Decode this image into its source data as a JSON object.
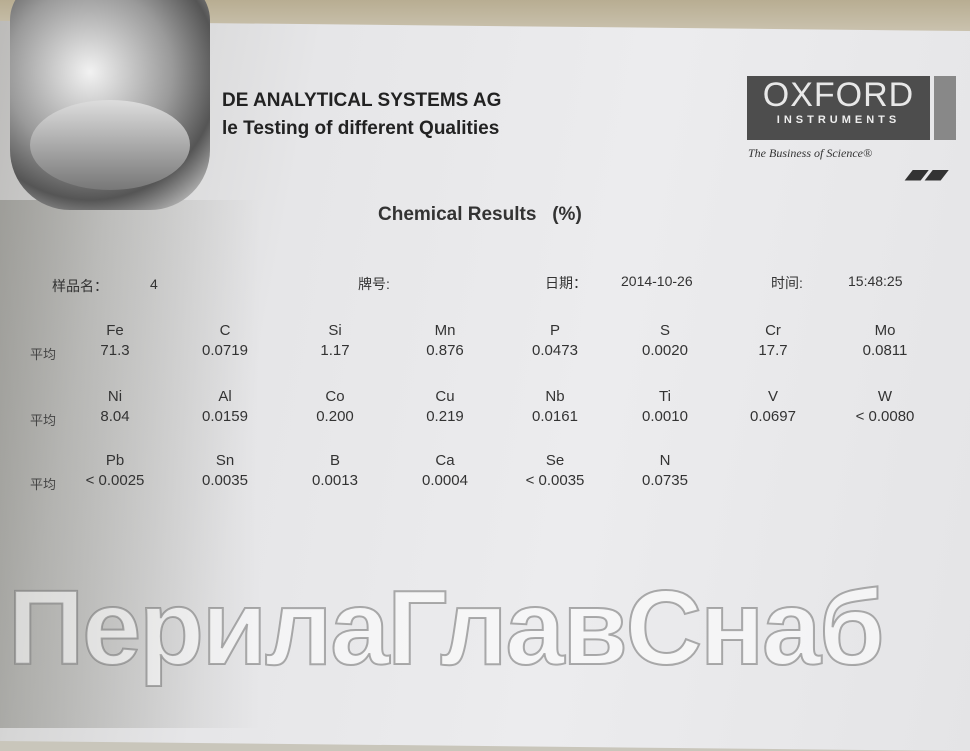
{
  "header": {
    "company": "DE ANALYTICAL SYSTEMS AG",
    "subtitle": "le Testing of different Qualities"
  },
  "logo": {
    "name": "OXFORD",
    "sub": "INSTRUMENTS",
    "tagline": "The Business of Science®"
  },
  "title": "Chemical Results   (%)",
  "meta": {
    "sample_label": "样品名：",
    "sample_value": "4",
    "grade_label": "牌号:",
    "date_label": "日期：",
    "date_value": "2014-10-26",
    "time_label": "时间:",
    "time_value": "15:48:25"
  },
  "avg_label": "平均",
  "rows": [
    [
      {
        "el": "Fe",
        "v": "71.3"
      },
      {
        "el": "C",
        "v": "0.0719"
      },
      {
        "el": "Si",
        "v": "1.17"
      },
      {
        "el": "Mn",
        "v": "0.876"
      },
      {
        "el": "P",
        "v": "0.0473"
      },
      {
        "el": "S",
        "v": "0.0020"
      },
      {
        "el": "Cr",
        "v": "17.7"
      },
      {
        "el": "Mo",
        "v": "0.0811"
      }
    ],
    [
      {
        "el": "Ni",
        "v": "8.04"
      },
      {
        "el": "Al",
        "v": "0.0159"
      },
      {
        "el": "Co",
        "v": "0.200"
      },
      {
        "el": "Cu",
        "v": "0.219"
      },
      {
        "el": "Nb",
        "v": "0.0161"
      },
      {
        "el": "Ti",
        "v": "0.0010"
      },
      {
        "el": "V",
        "v": "0.0697"
      },
      {
        "el": "W",
        "v": "< 0.0080"
      }
    ],
    [
      {
        "el": "Pb",
        "v": "< 0.0025"
      },
      {
        "el": "Sn",
        "v": "0.0035"
      },
      {
        "el": "B",
        "v": "0.0013"
      },
      {
        "el": "Ca",
        "v": "0.0004"
      },
      {
        "el": "Se",
        "v": "< 0.0035"
      },
      {
        "el": "N",
        "v": "0.0735"
      }
    ]
  ],
  "watermark": "ПерилаГлавСнаб"
}
